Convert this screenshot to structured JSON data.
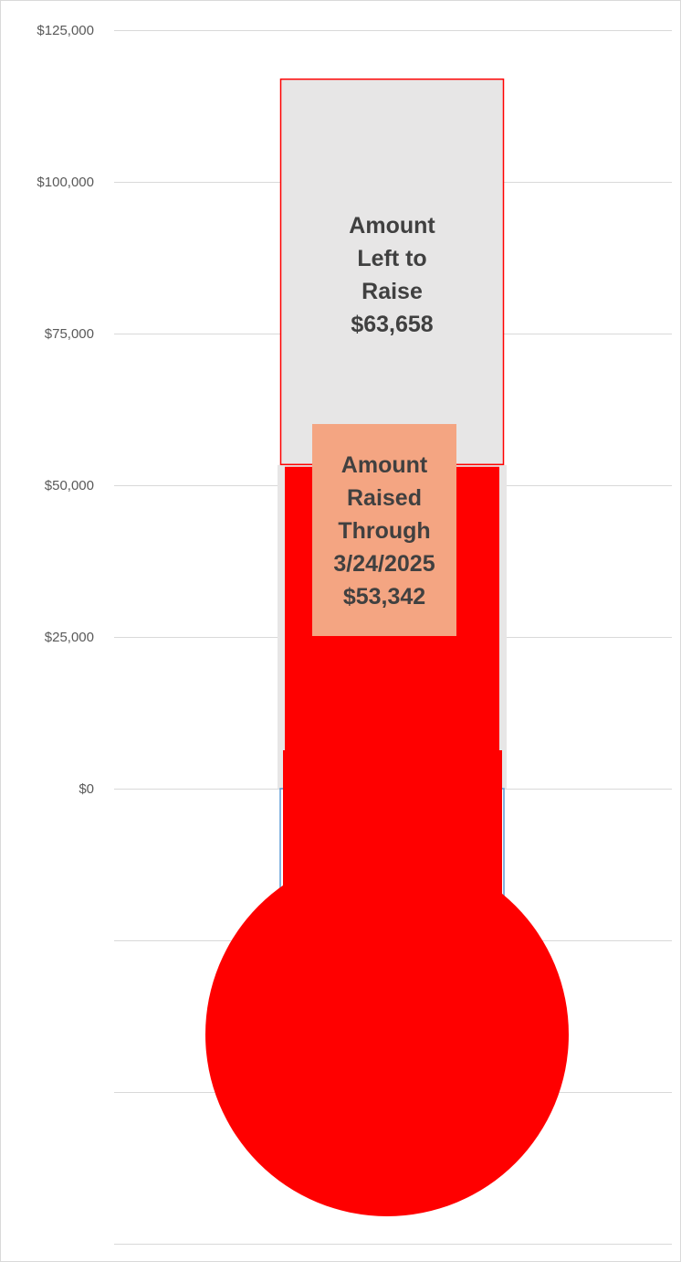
{
  "chart_data": {
    "type": "bar",
    "subtype": "thermometer-stacked-column",
    "ylim": [
      0,
      125000
    ],
    "y_ticks": [
      "$125,000",
      "$100,000",
      "$75,000",
      "$50,000",
      "$25,000",
      "$0"
    ],
    "y_tick_values": [
      125000,
      100000,
      75000,
      50000,
      25000,
      0
    ],
    "grid": true,
    "series": [
      {
        "values": [
          53342
        ],
        "color": "#ff0000",
        "label_lines": [
          "Amount",
          "Raised",
          "Through",
          "3/24/2025",
          "$53,342"
        ]
      },
      {
        "values": [
          63658
        ],
        "color": "#e7e6e6",
        "outline_color": "#ff0000",
        "label_lines": [
          "Amount",
          "Left to",
          "Raise",
          "$63,658"
        ]
      }
    ],
    "total_goal": 117000,
    "colors": {
      "raised": "#ff0000",
      "remaining": "#e7e6e6",
      "raised_label_bg": "#f4a582",
      "bulb": "#ff0000",
      "grid": "#d9d9d9",
      "stem_outline": "#5b9bd5"
    }
  }
}
